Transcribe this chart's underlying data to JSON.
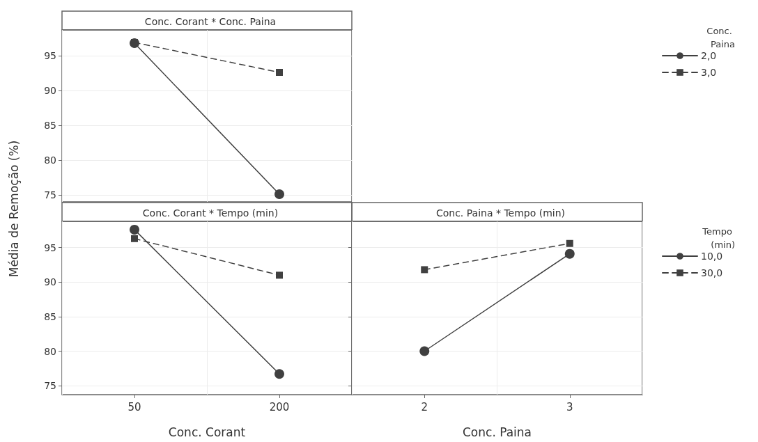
{
  "chart_data": [
    {
      "type": "line",
      "title": "Conc. Corant * Conc. Paina",
      "ylabel": "Média de Remoção (%)",
      "categories": [
        "50",
        "200"
      ],
      "ylim": [
        74,
        98.7
      ],
      "yticks": [
        75,
        80,
        85,
        90,
        95
      ],
      "tick_labels": "y",
      "grid": true,
      "legend": "right",
      "legend_title": "Conc. Paina",
      "series": [
        {
          "name": "2,0",
          "color": "#404040",
          "marker": "circle",
          "line_style": "solid",
          "values": [
            96.8,
            75.1
          ]
        },
        {
          "name": "3,0",
          "color": "#404040",
          "marker": "square",
          "line_style": "dashed",
          "values": [
            96.9,
            92.6
          ]
        }
      ]
    },
    {
      "type": "line",
      "title": "Conc. Corant * Tempo (min)",
      "xlabel": "Conc. Corant",
      "categories": [
        "50",
        "200"
      ],
      "ylim": [
        73.7,
        98.8
      ],
      "yticks": [
        75,
        80,
        85,
        90,
        95
      ],
      "grid": true,
      "series": [
        {
          "color": "#404040",
          "marker": "circle",
          "line_style": "solid",
          "values": [
            97.6,
            76.7
          ]
        },
        {
          "color": "#404040",
          "marker": "square",
          "line_style": "dashed",
          "values": [
            96.3,
            91.0
          ]
        }
      ]
    },
    {
      "type": "line",
      "title": "Conc. Paina * Tempo (min)",
      "xlabel": "Conc. Paina",
      "categories": [
        "2",
        "3"
      ],
      "ylim": [
        73.7,
        98.8
      ],
      "yticks": [
        75,
        80,
        85,
        90,
        95
      ],
      "tick_labels": "x",
      "grid": true,
      "legend": "right",
      "legend_title": "Tempo (min)",
      "series": [
        {
          "name": "10,0",
          "color": "#404040",
          "marker": "circle",
          "line_style": "solid",
          "values": [
            80.0,
            94.1
          ]
        },
        {
          "name": "30,0",
          "color": "#404040",
          "marker": "square",
          "line_style": "dashed",
          "values": [
            91.8,
            95.6
          ]
        }
      ]
    }
  ]
}
